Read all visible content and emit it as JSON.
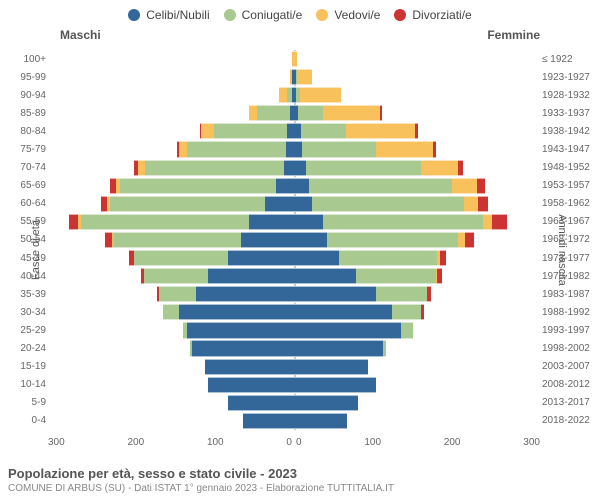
{
  "legend": [
    {
      "label": "Celibi/Nubili",
      "color": "#336699"
    },
    {
      "label": "Coniugati/e",
      "color": "#a8c98f"
    },
    {
      "label": "Vedovi/e",
      "color": "#f9c15c"
    },
    {
      "label": "Divorziati/e",
      "color": "#cc3333"
    }
  ],
  "headers": {
    "left": "Maschi",
    "right": "Femmine"
  },
  "y_label_left": "Fasce di età",
  "y_label_right": "Anni di nascita",
  "x_max": 300,
  "x_ticks_left": [
    "300",
    "200",
    "100",
    "0"
  ],
  "x_ticks_right": [
    "0",
    "100",
    "200",
    "300"
  ],
  "footer": {
    "title": "Popolazione per età, sesso e stato civile - 2023",
    "sub": "COMUNE DI ARBUS (SU) - Dati ISTAT 1° gennaio 2023 - Elaborazione TUTTITALIA.IT"
  },
  "rows": [
    {
      "age": "100+",
      "birth": "≤ 1922",
      "m": [
        0,
        0,
        3,
        0
      ],
      "f": [
        0,
        0,
        4,
        0
      ]
    },
    {
      "age": "95-99",
      "birth": "1923-1927",
      "m": [
        3,
        0,
        2,
        0
      ],
      "f": [
        2,
        2,
        18,
        0
      ]
    },
    {
      "age": "90-94",
      "birth": "1928-1932",
      "m": [
        3,
        5,
        10,
        0
      ],
      "f": [
        2,
        5,
        50,
        0
      ]
    },
    {
      "age": "85-89",
      "birth": "1933-1937",
      "m": [
        5,
        40,
        10,
        0
      ],
      "f": [
        5,
        30,
        70,
        2
      ]
    },
    {
      "age": "80-84",
      "birth": "1938-1942",
      "m": [
        8,
        90,
        15,
        2
      ],
      "f": [
        8,
        55,
        85,
        3
      ]
    },
    {
      "age": "75-79",
      "birth": "1943-1947",
      "m": [
        10,
        120,
        10,
        3
      ],
      "f": [
        10,
        90,
        70,
        3
      ]
    },
    {
      "age": "70-74",
      "birth": "1948-1952",
      "m": [
        12,
        170,
        8,
        5
      ],
      "f": [
        15,
        140,
        45,
        6
      ]
    },
    {
      "age": "65-69",
      "birth": "1953-1957",
      "m": [
        22,
        190,
        5,
        8
      ],
      "f": [
        18,
        175,
        30,
        10
      ]
    },
    {
      "age": "60-64",
      "birth": "1958-1962",
      "m": [
        35,
        190,
        3,
        8
      ],
      "f": [
        22,
        185,
        18,
        12
      ]
    },
    {
      "age": "55-59",
      "birth": "1963-1967",
      "m": [
        55,
        205,
        3,
        12
      ],
      "f": [
        35,
        195,
        12,
        18
      ]
    },
    {
      "age": "50-54",
      "birth": "1968-1972",
      "m": [
        65,
        155,
        2,
        8
      ],
      "f": [
        40,
        160,
        8,
        12
      ]
    },
    {
      "age": "45-49",
      "birth": "1973-1977",
      "m": [
        80,
        115,
        0,
        6
      ],
      "f": [
        55,
        120,
        3,
        8
      ]
    },
    {
      "age": "40-44",
      "birth": "1978-1982",
      "m": [
        105,
        78,
        0,
        4
      ],
      "f": [
        75,
        98,
        2,
        6
      ]
    },
    {
      "age": "35-39",
      "birth": "1983-1987",
      "m": [
        120,
        45,
        0,
        2
      ],
      "f": [
        100,
        62,
        0,
        5
      ]
    },
    {
      "age": "30-34",
      "birth": "1988-1992",
      "m": [
        140,
        20,
        0,
        0
      ],
      "f": [
        120,
        35,
        0,
        3
      ]
    },
    {
      "age": "25-29",
      "birth": "1993-1997",
      "m": [
        130,
        6,
        0,
        0
      ],
      "f": [
        130,
        15,
        0,
        0
      ]
    },
    {
      "age": "20-24",
      "birth": "1998-2002",
      "m": [
        125,
        2,
        0,
        0
      ],
      "f": [
        108,
        4,
        0,
        0
      ]
    },
    {
      "age": "15-19",
      "birth": "2003-2007",
      "m": [
        108,
        0,
        0,
        0
      ],
      "f": [
        90,
        0,
        0,
        0
      ]
    },
    {
      "age": "10-14",
      "birth": "2008-2012",
      "m": [
        105,
        0,
        0,
        0
      ],
      "f": [
        100,
        0,
        0,
        0
      ]
    },
    {
      "age": "5-9",
      "birth": "2013-2017",
      "m": [
        80,
        0,
        0,
        0
      ],
      "f": [
        78,
        0,
        0,
        0
      ]
    },
    {
      "age": "0-4",
      "birth": "2018-2022",
      "m": [
        62,
        0,
        0,
        0
      ],
      "f": [
        65,
        0,
        0,
        0
      ]
    }
  ]
}
